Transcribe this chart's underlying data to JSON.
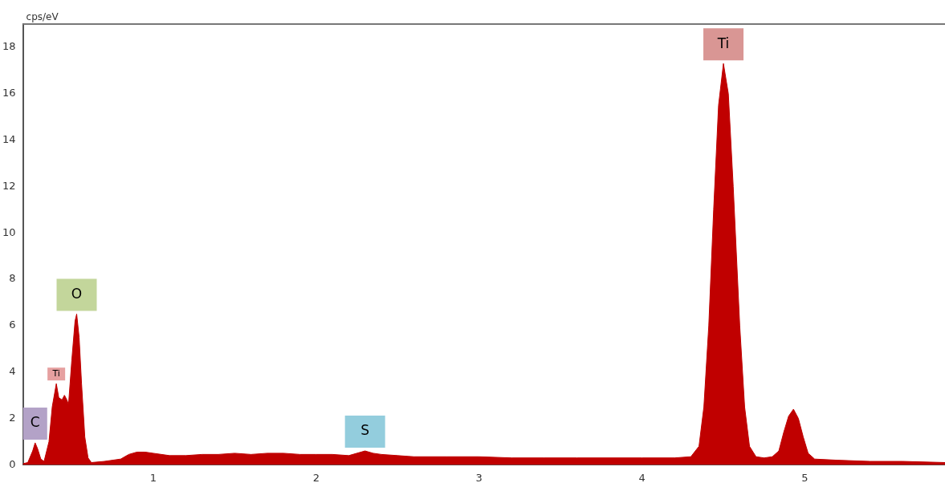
{
  "chart_data": {
    "type": "area",
    "ylabel": "cps/eV",
    "x": [
      0.2,
      0.23,
      0.26,
      0.275,
      0.29,
      0.31,
      0.33,
      0.36,
      0.38,
      0.405,
      0.42,
      0.44,
      0.455,
      0.47,
      0.48,
      0.5,
      0.52,
      0.53,
      0.545,
      0.56,
      0.58,
      0.6,
      0.62,
      0.7,
      0.8,
      0.85,
      0.9,
      0.95,
      1.0,
      1.1,
      1.2,
      1.3,
      1.4,
      1.5,
      1.6,
      1.7,
      1.8,
      1.9,
      2.0,
      2.1,
      2.2,
      2.3,
      2.35,
      2.4,
      2.5,
      2.6,
      2.8,
      3.0,
      3.2,
      3.4,
      3.6,
      3.8,
      4.0,
      4.2,
      4.3,
      4.35,
      4.38,
      4.41,
      4.44,
      4.47,
      4.5,
      4.53,
      4.56,
      4.6,
      4.63,
      4.66,
      4.7,
      4.75,
      4.8,
      4.84,
      4.87,
      4.9,
      4.93,
      4.96,
      4.99,
      5.02,
      5.06,
      5.2,
      5.4,
      5.6,
      5.86
    ],
    "series": [
      {
        "color": "#c00000",
        "values": [
          0.05,
          0.1,
          0.6,
          0.95,
          0.7,
          0.25,
          0.15,
          1.0,
          2.5,
          3.5,
          2.9,
          2.8,
          3.0,
          2.8,
          2.6,
          4.5,
          6.2,
          6.5,
          5.5,
          3.5,
          1.2,
          0.3,
          0.1,
          0.15,
          0.25,
          0.45,
          0.55,
          0.55,
          0.5,
          0.4,
          0.4,
          0.45,
          0.45,
          0.5,
          0.45,
          0.5,
          0.5,
          0.45,
          0.45,
          0.45,
          0.4,
          0.6,
          0.5,
          0.45,
          0.4,
          0.35,
          0.35,
          0.35,
          0.3,
          0.3,
          0.3,
          0.3,
          0.3,
          0.3,
          0.35,
          0.8,
          2.5,
          6,
          11,
          15.5,
          17.3,
          16,
          12,
          6,
          2.5,
          0.8,
          0.35,
          0.3,
          0.35,
          0.6,
          1.4,
          2.1,
          2.4,
          2.0,
          1.2,
          0.5,
          0.25,
          0.2,
          0.15,
          0.15,
          0.1
        ]
      }
    ],
    "xlim": [
      0.2,
      5.86
    ],
    "xticks": [
      1,
      2,
      3,
      4,
      5
    ],
    "ylim": [
      0,
      19
    ],
    "yticks": [
      0,
      2,
      4,
      6,
      8,
      10,
      12,
      14,
      16,
      18
    ],
    "annotations": [
      {
        "text": "C",
        "x": 0.275,
        "y": 0.95
      },
      {
        "text": "Ti",
        "x": 0.405,
        "y": 3.5
      },
      {
        "text": "O",
        "x": 0.53,
        "y": 6.5
      },
      {
        "text": "S",
        "x": 2.3,
        "y": 0.6
      },
      {
        "text": "Ti",
        "x": 4.5,
        "y": 17.3
      }
    ]
  }
}
